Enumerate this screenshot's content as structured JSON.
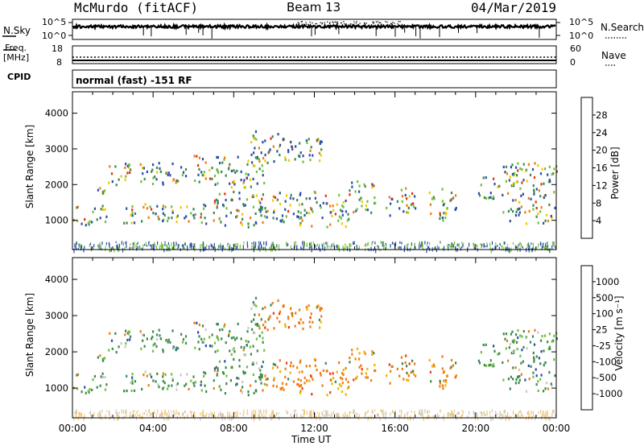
{
  "header": {
    "station": "McMurdo (fitACF)",
    "beam": "Beam 13",
    "date": "04/Mar/2019"
  },
  "top_panels": {
    "nsky_label": "N.Sky",
    "nsky_ticks": [
      "10^5",
      "10^0"
    ],
    "nsearch_label": "N.Search",
    "nsearch_ticks": [
      "10^5",
      "10^0"
    ],
    "freq_label": "Freq.",
    "freq_unit": "[MHz]",
    "freq_ticks": [
      "18",
      "8"
    ],
    "nave_label": "Nave",
    "nave_ticks": [
      "60",
      "0"
    ],
    "cpid_label": "CPID",
    "cpid_value": "normal (fast) -151 RF"
  },
  "colors": {
    "power_scale": [
      "#1a1aff",
      "#2a4fa8",
      "#3f8a4e",
      "#6fc23a",
      "#f0c800",
      "#f07c10",
      "#e83010",
      "#ff0000"
    ],
    "velocity_scale": [
      "#ff0000",
      "#e84010",
      "#f07c10",
      "#f0b400",
      "#c8c8c8",
      "#6fc23a",
      "#3f8a4e",
      "#2a4fa8",
      "#1a1aff"
    ]
  },
  "chart_data": [
    {
      "type": "heatmap",
      "name": "power_panel",
      "ylabel": "Slant Range [km]",
      "yticks": [
        "1000",
        "2000",
        "3000",
        "4000"
      ],
      "ylim": [
        180,
        4600
      ],
      "xlim": [
        "00:00",
        "24:00"
      ],
      "colorbar_label": "Power [dB]",
      "colorbar_ticks": [
        "4",
        "8",
        "12",
        "16",
        "20",
        "24",
        "28"
      ],
      "colorbar_range": [
        0,
        32
      ],
      "scatter_echo_bands": [
        {
          "start": "00:00",
          "end": "01:40",
          "range_low": 850,
          "range_high": 1400
        },
        {
          "start": "01:00",
          "end": "02:10",
          "range_low": 1750,
          "range_high": 2050
        },
        {
          "start": "01:40",
          "end": "05:40",
          "range_low": 2000,
          "range_high": 2600
        },
        {
          "start": "02:20",
          "end": "07:00",
          "range_low": 900,
          "range_high": 1450
        },
        {
          "start": "06:00",
          "end": "09:30",
          "range_low": 1900,
          "range_high": 2800
        },
        {
          "start": "07:00",
          "end": "13:40",
          "range_low": 800,
          "range_high": 1800
        },
        {
          "start": "08:50",
          "end": "12:20",
          "range_low": 2600,
          "range_high": 3500
        },
        {
          "start": "13:40",
          "end": "15:00",
          "range_low": 1200,
          "range_high": 2100
        },
        {
          "start": "15:30",
          "end": "17:00",
          "range_low": 1100,
          "range_high": 1900
        },
        {
          "start": "17:40",
          "end": "19:00",
          "range_low": 950,
          "range_high": 1900
        },
        {
          "start": "20:00",
          "end": "21:20",
          "range_low": 1600,
          "range_high": 2200
        },
        {
          "start": "21:20",
          "end": "24:00",
          "range_low": 900,
          "range_high": 2600
        }
      ]
    },
    {
      "type": "heatmap",
      "name": "velocity_panel",
      "ylabel": "Slant Range [km]",
      "yticks": [
        "1000",
        "2000",
        "3000",
        "4000"
      ],
      "ylim": [
        180,
        4600
      ],
      "xlim": [
        "00:00",
        "24:00"
      ],
      "xticks": [
        "00:00",
        "04:00",
        "08:00",
        "12:00",
        "16:00",
        "20:00",
        "00:00"
      ],
      "xlabel": "Time UT",
      "colorbar_label": "Velocity [m s⁻¹]",
      "colorbar_ticks": [
        "1000",
        "500",
        "100",
        "25",
        "-25",
        "-100",
        "-500",
        "-1000"
      ]
    }
  ]
}
